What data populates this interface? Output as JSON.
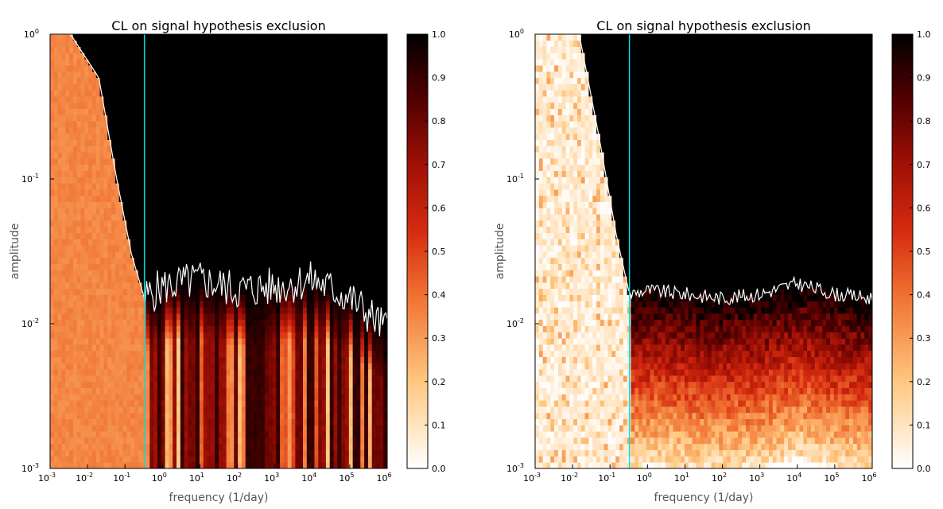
{
  "chart_data": [
    {
      "type": "heatmap",
      "title": "CL on signal hypothesis exclusion",
      "xlabel": "frequency (1/day)",
      "ylabel": "amplitude",
      "xscale": "log",
      "yscale": "log",
      "xlim": [
        0.001,
        1000000
      ],
      "ylim": [
        0.001,
        1
      ],
      "x_ticks": [
        {
          "base": "10",
          "exp": "-3"
        },
        {
          "base": "10",
          "exp": "-2"
        },
        {
          "base": "10",
          "exp": "-1"
        },
        {
          "base": "10",
          "exp": "0"
        },
        {
          "base": "10",
          "exp": "1"
        },
        {
          "base": "10",
          "exp": "2"
        },
        {
          "base": "10",
          "exp": "3"
        },
        {
          "base": "10",
          "exp": "4"
        },
        {
          "base": "10",
          "exp": "5"
        },
        {
          "base": "10",
          "exp": "6"
        }
      ],
      "y_ticks": [
        {
          "base": "10",
          "exp": "-3"
        },
        {
          "base": "10",
          "exp": "-2"
        },
        {
          "base": "10",
          "exp": "-1"
        },
        {
          "base": "10",
          "exp": "0"
        }
      ],
      "colorbar": {
        "ticks": [
          "0.0",
          "0.1",
          "0.2",
          "0.3",
          "0.4",
          "0.5",
          "0.6",
          "0.7",
          "0.8",
          "0.9",
          "1.0"
        ],
        "range": [
          0,
          1
        ]
      },
      "vertical_line_frequency": 0.33,
      "low_frequency_cl": 0.35,
      "boundary_curve": [
        [
          0.001,
          1
        ],
        [
          0.0035,
          1
        ],
        [
          0.02,
          0.5
        ],
        [
          0.06,
          0.1
        ],
        [
          0.15,
          0.03
        ],
        [
          0.33,
          0.015
        ],
        [
          1,
          0.018
        ],
        [
          10,
          0.02
        ],
        [
          100,
          0.017
        ],
        [
          1000,
          0.018
        ],
        [
          10000,
          0.02
        ],
        [
          100000,
          0.015
        ],
        [
          1000000,
          0.009
        ]
      ],
      "colors": {
        "cyan_line": "#00e0e0",
        "boundary_line": "#ffffff"
      }
    },
    {
      "type": "heatmap",
      "title": "CL on signal hypothesis exclusion",
      "xlabel": "frequency (1/day)",
      "ylabel": "amplitude",
      "xscale": "log",
      "yscale": "log",
      "xlim": [
        0.001,
        1000000
      ],
      "ylim": [
        0.001,
        1
      ],
      "x_ticks": [
        {
          "base": "10",
          "exp": "-3"
        },
        {
          "base": "10",
          "exp": "-2"
        },
        {
          "base": "10",
          "exp": "-1"
        },
        {
          "base": "10",
          "exp": "0"
        },
        {
          "base": "10",
          "exp": "1"
        },
        {
          "base": "10",
          "exp": "2"
        },
        {
          "base": "10",
          "exp": "3"
        },
        {
          "base": "10",
          "exp": "4"
        },
        {
          "base": "10",
          "exp": "5"
        },
        {
          "base": "10",
          "exp": "6"
        }
      ],
      "y_ticks": [
        {
          "base": "10",
          "exp": "-3"
        },
        {
          "base": "10",
          "exp": "-2"
        },
        {
          "base": "10",
          "exp": "-1"
        },
        {
          "base": "10",
          "exp": "0"
        }
      ],
      "colorbar": {
        "ticks": [
          "0.0",
          "0.1",
          "0.2",
          "0.3",
          "0.4",
          "0.5",
          "0.6",
          "0.7",
          "0.8",
          "0.9",
          "1.0"
        ],
        "range": [
          0,
          1
        ]
      },
      "vertical_line_frequency": 0.33,
      "low_frequency_cl": 0.05,
      "boundary_curve": [
        [
          0.001,
          1
        ],
        [
          0.015,
          1
        ],
        [
          0.05,
          0.2
        ],
        [
          0.15,
          0.04
        ],
        [
          0.33,
          0.016
        ],
        [
          1,
          0.017
        ],
        [
          10,
          0.016
        ],
        [
          100,
          0.015
        ],
        [
          1000,
          0.016
        ],
        [
          10000,
          0.019
        ],
        [
          100000,
          0.016
        ],
        [
          1000000,
          0.015
        ]
      ],
      "colors": {
        "cyan_line": "#00e0e0",
        "boundary_line": "#ffffff"
      }
    }
  ]
}
